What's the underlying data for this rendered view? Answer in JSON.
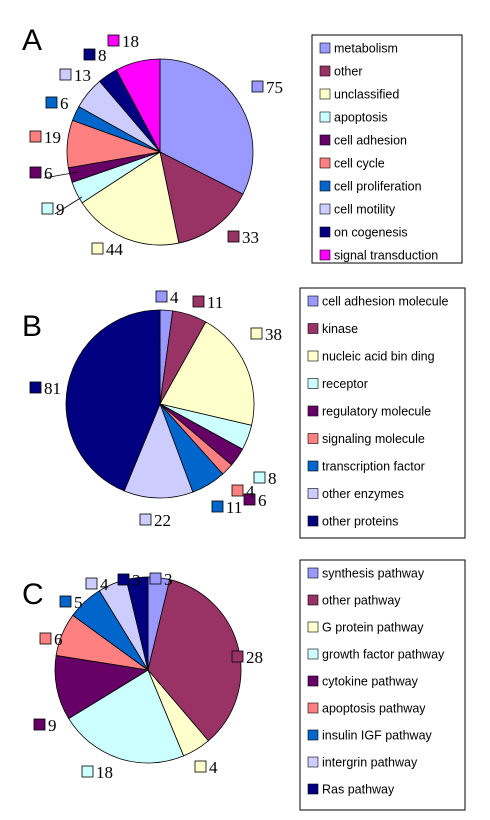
{
  "chart_data": [
    {
      "type": "pie",
      "panel_label": "A",
      "categories": [
        "metabolism",
        "other",
        "unclassified",
        "apoptosis",
        "cell adhesion",
        "cell cycle",
        "cell proliferation",
        "cell motility",
        "on cogenesis",
        "signal transduction"
      ],
      "values": [
        75,
        33,
        44,
        9,
        6,
        19,
        6,
        13,
        8,
        18
      ],
      "colors": [
        "#9999ff",
        "#993366",
        "#ffffcc",
        "#ccffff",
        "#660066",
        "#ff8080",
        "#0066cc",
        "#ccccff",
        "#000080",
        "#ff00ff"
      ],
      "legend": "right"
    },
    {
      "type": "pie",
      "panel_label": "B",
      "categories": [
        "cell adhesion molecule",
        "kinase",
        "nucleic acid bin ding",
        "receptor",
        "regulatory molecule",
        "signaling molecule",
        "transcription factor",
        "other enzymes",
        "other proteins"
      ],
      "values": [
        4,
        11,
        38,
        8,
        6,
        4,
        11,
        22,
        81
      ],
      "colors": [
        "#9999ff",
        "#993366",
        "#ffffcc",
        "#ccffff",
        "#660066",
        "#ff8080",
        "#0066cc",
        "#ccccff",
        "#000080"
      ],
      "legend": "right"
    },
    {
      "type": "pie",
      "panel_label": "C",
      "categories": [
        "synthesis pathway",
        "other pathway",
        "G protein pathway",
        "growth factor pathway",
        "cytokine pathway",
        "apoptosis pathway",
        "insulin IGF pathway",
        "intergrin pathway",
        "Ras pathway"
      ],
      "values": [
        3,
        28,
        4,
        18,
        9,
        6,
        5,
        4,
        3
      ],
      "colors": [
        "#9999ff",
        "#993366",
        "#ffffcc",
        "#ccffff",
        "#660066",
        "#ff8080",
        "#0066cc",
        "#ccccff",
        "#000080"
      ],
      "legend": "right"
    }
  ]
}
